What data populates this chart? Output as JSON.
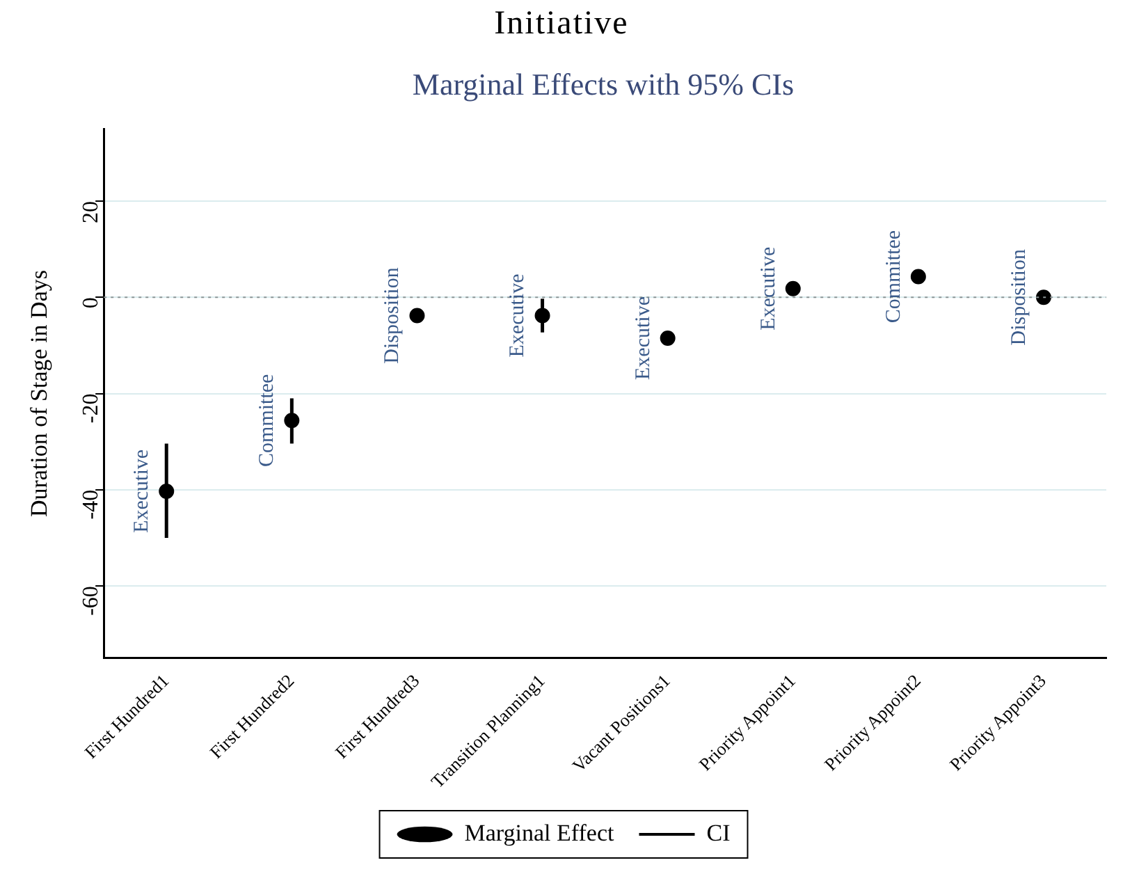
{
  "chart_data": {
    "type": "scatter",
    "title": "Initiative",
    "subtitle": "Marginal Effects with 95% CIs",
    "ylabel": "Duration of Stage in Days",
    "categories": [
      "First Hundred1",
      "First Hundred2",
      "First Hundred3",
      "Transition Planning1",
      "Vacant Positions1",
      "Priority Appoint1",
      "Priority Appoint2",
      "Priority Appoint3"
    ],
    "series": [
      {
        "name": "Marginal Effect",
        "color": "#000000",
        "marker": "circle",
        "values": [
          -40.3,
          -25.6,
          -3.8,
          -3.8,
          -8.5,
          1.8,
          4.3,
          0
        ],
        "errors": [
          [
            -50,
            -30.4
          ],
          [
            -30.4,
            -21
          ],
          null,
          [
            -7.3,
            -0.3
          ],
          null,
          null,
          null,
          null
        ]
      },
      {
        "name": "CI",
        "color": "#000000",
        "marker": "none",
        "values": [
          null,
          null,
          null,
          null,
          null,
          null,
          null,
          null
        ]
      }
    ],
    "ylim": [
      -75,
      35
    ],
    "yticks": [
      20,
      0,
      -20,
      -40,
      -60
    ],
    "grid": "y",
    "legend": "bottom",
    "ref_lines": [
      {
        "axis": "y",
        "value": 0,
        "color": "#8c9596",
        "line_style": "dotted"
      }
    ],
    "annotations": [
      {
        "text": "Executive",
        "x": "First Hundred1",
        "y": -40.3
      },
      {
        "text": "Committee",
        "x": "First Hundred2",
        "y": -25.6
      },
      {
        "text": "Disposition",
        "x": "First Hundred3",
        "y": -3.8
      },
      {
        "text": "Executive",
        "x": "Transition Planning1",
        "y": -3.8
      },
      {
        "text": "Executive",
        "x": "Vacant Positions1",
        "y": -8.5
      },
      {
        "text": "Executive",
        "x": "Priority Appoint1",
        "y": 1.8
      },
      {
        "text": "Committee",
        "x": "Priority Appoint2",
        "y": 4.3
      },
      {
        "text": "Disposition",
        "x": "Priority Appoint3",
        "y": 0
      }
    ]
  }
}
